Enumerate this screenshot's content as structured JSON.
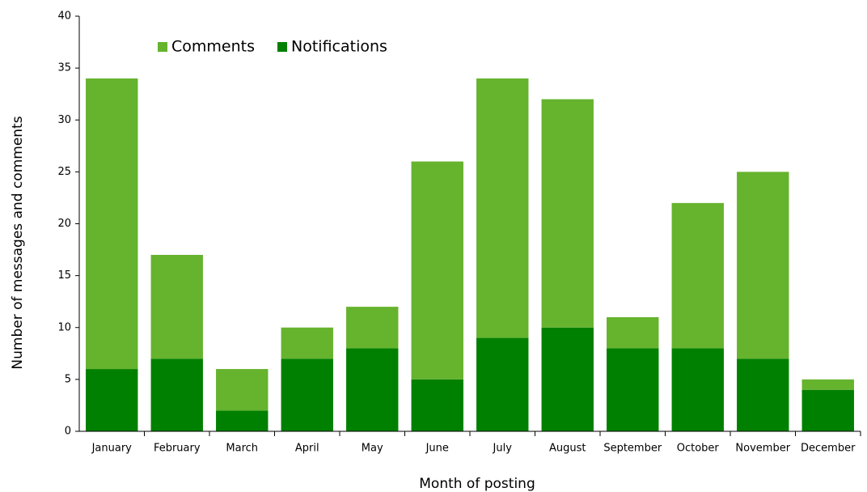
{
  "chart_data": {
    "type": "stacked_bar",
    "xlabel": "Month of posting",
    "ylabel": "Number of messages and comments",
    "categories": [
      "January",
      "February",
      "March",
      "April",
      "May",
      "June",
      "July",
      "August",
      "September",
      "October",
      "November",
      "December"
    ],
    "series": [
      {
        "name": "Comments",
        "color": "#66b32e",
        "values": [
          28,
          10,
          4,
          3,
          4,
          21,
          25,
          22,
          3,
          14,
          18,
          1
        ]
      },
      {
        "name": "Notifications",
        "color": "#008000",
        "values": [
          6,
          7,
          2,
          7,
          8,
          5,
          9,
          10,
          8,
          8,
          7,
          4
        ]
      }
    ],
    "ylim": [
      0,
      40
    ],
    "yticks": [
      0,
      5,
      10,
      15,
      20,
      25,
      30,
      35,
      40
    ],
    "grid": false,
    "legend": "top-left"
  }
}
